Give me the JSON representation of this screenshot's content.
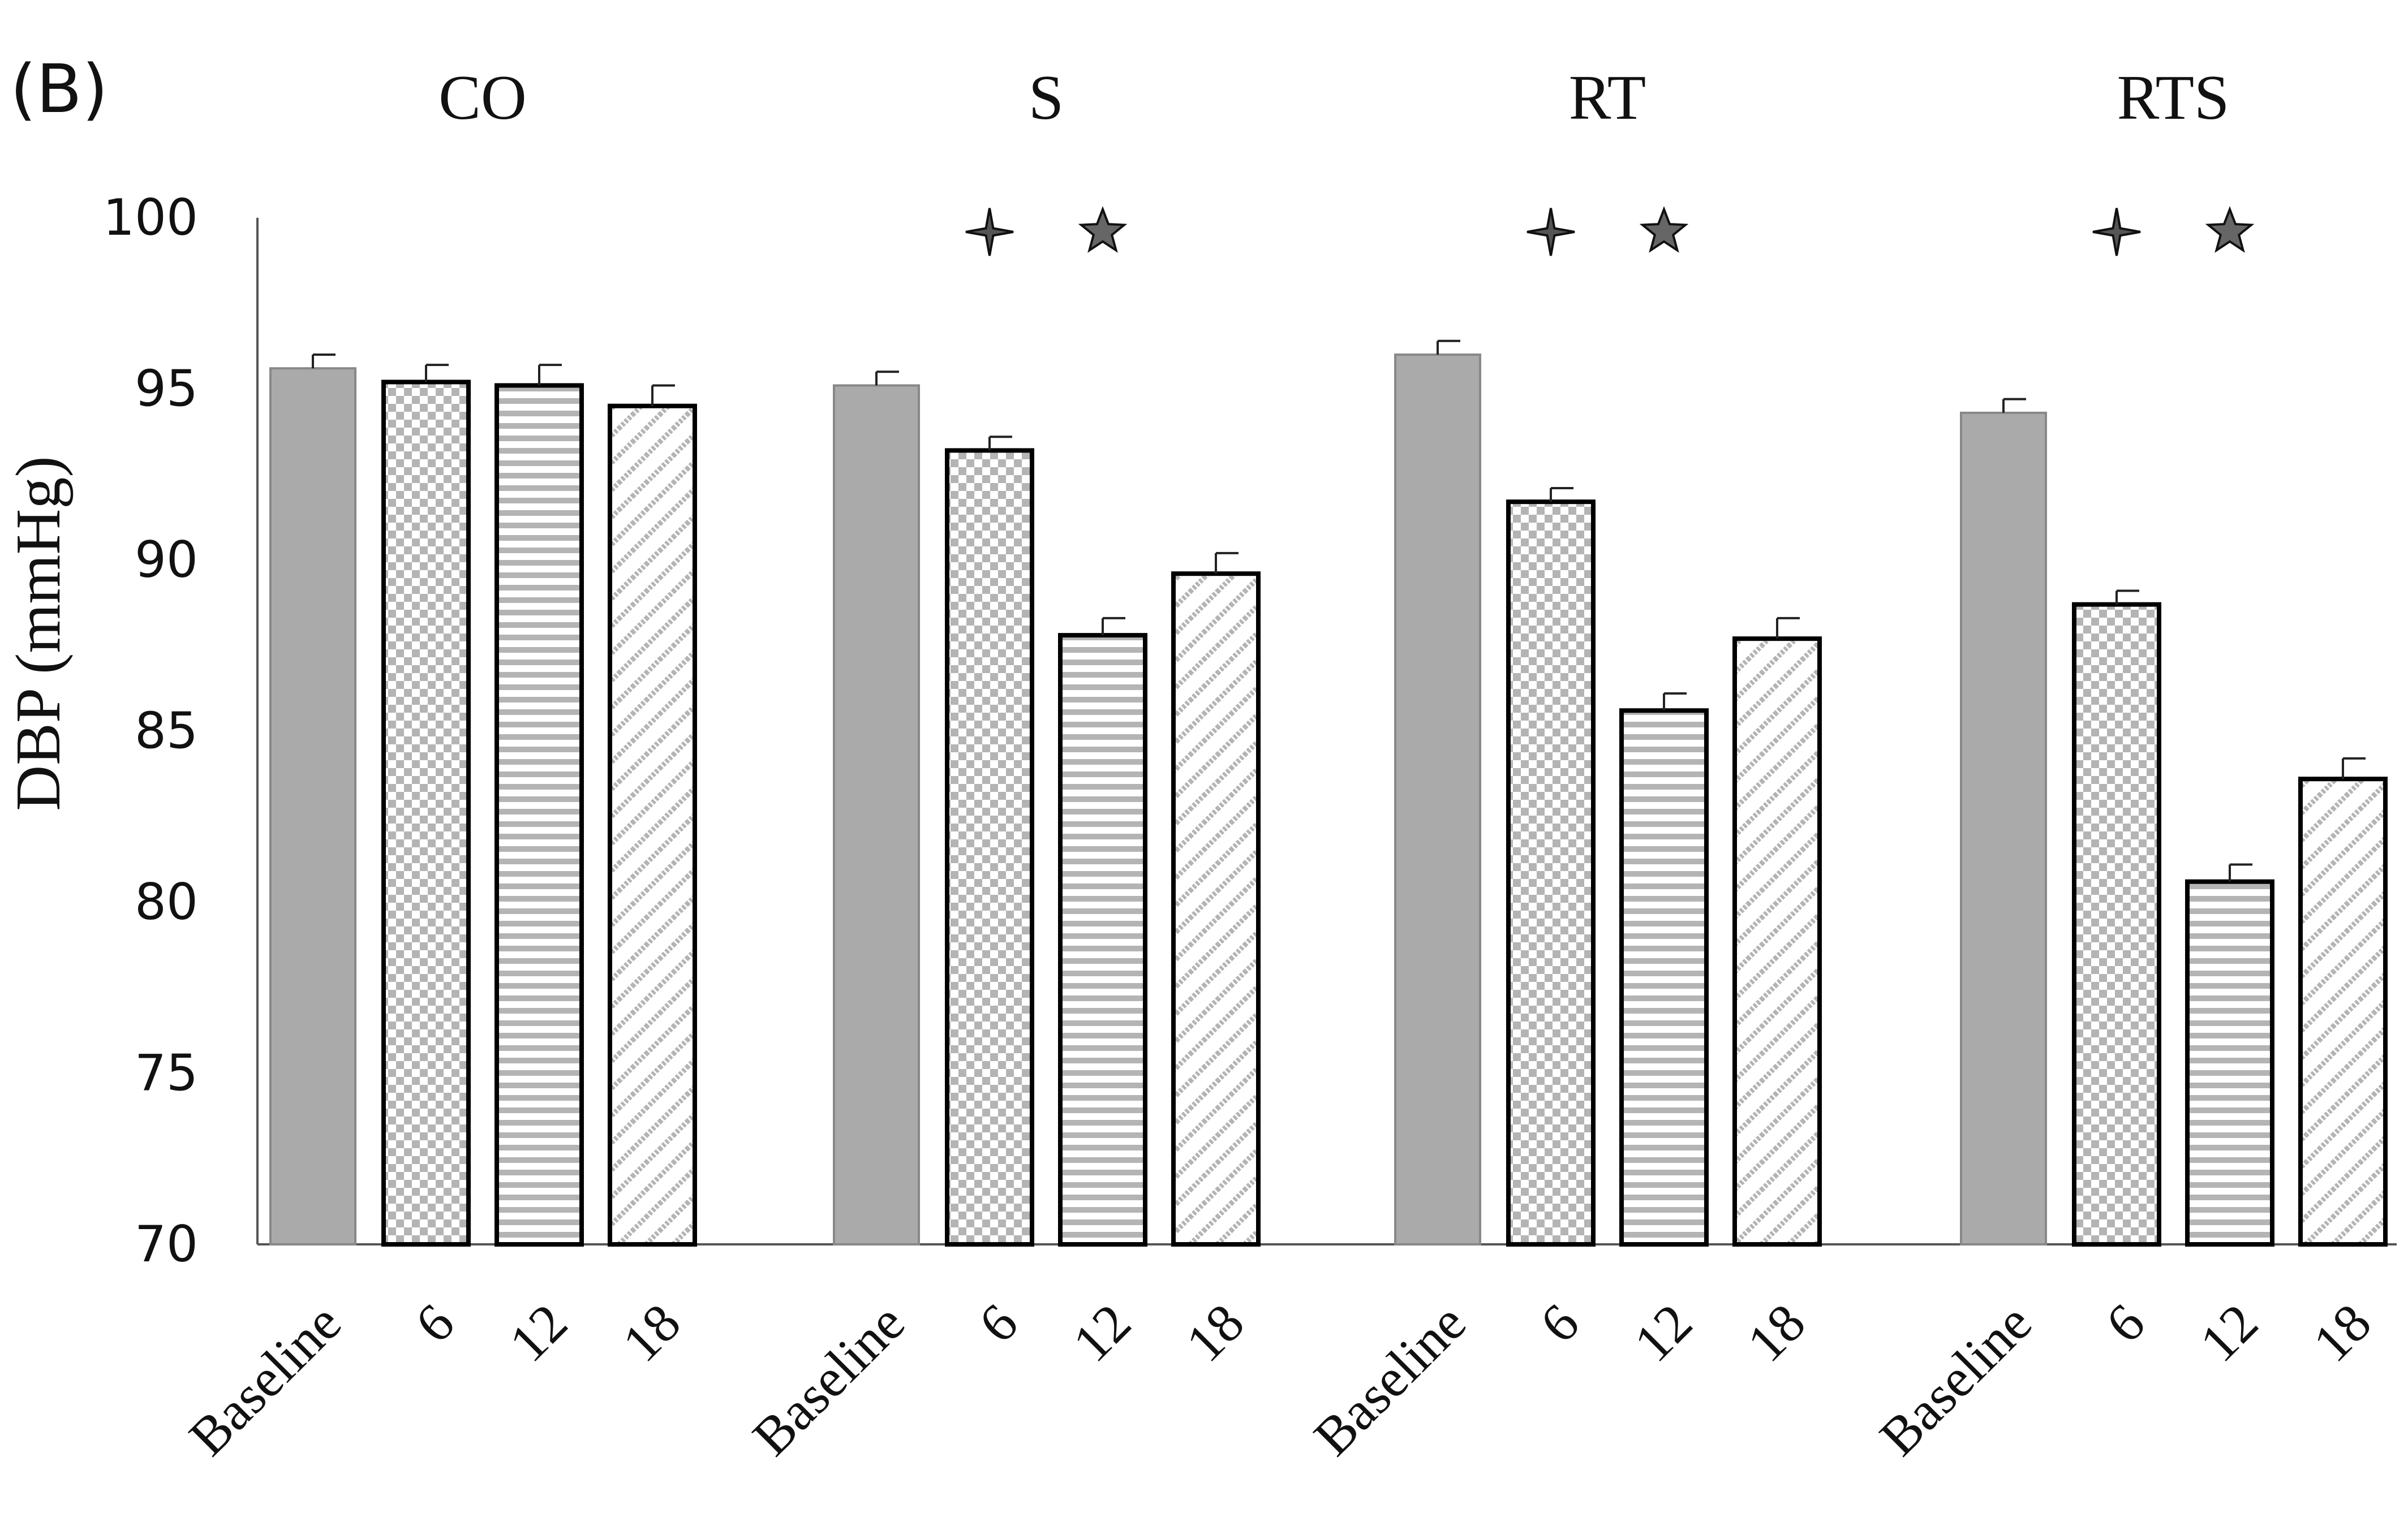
{
  "panel_label": "(B)",
  "chart_data": {
    "type": "bar",
    "ylabel": "DBP (mmHg)",
    "ylim": [
      70,
      100
    ],
    "yticks": [
      70,
      75,
      80,
      85,
      90,
      95,
      100
    ],
    "grid": false,
    "categories": [
      "Baseline",
      "6",
      "12",
      "18"
    ],
    "groups": [
      {
        "name": "CO",
        "values": [
          95.6,
          95.2,
          95.1,
          94.5
        ],
        "errors": [
          0.4,
          0.5,
          0.6,
          0.6
        ],
        "markers": []
      },
      {
        "name": "S",
        "values": [
          95.1,
          93.2,
          87.8,
          89.6
        ],
        "errors": [
          0.4,
          0.4,
          0.5,
          0.6
        ],
        "markers": [
          "cross-star",
          "star"
        ]
      },
      {
        "name": "RT",
        "values": [
          96.0,
          91.7,
          85.6,
          87.7
        ],
        "errors": [
          0.4,
          0.4,
          0.5,
          0.6
        ],
        "markers": [
          "cross-star",
          "star"
        ]
      },
      {
        "name": "RTS",
        "values": [
          94.3,
          88.7,
          80.6,
          83.6
        ],
        "errors": [
          0.4,
          0.4,
          0.5,
          0.6
        ],
        "markers": [
          "cross-star",
          "star"
        ]
      }
    ],
    "patterns": [
      "solid-gray",
      "checkerboard",
      "horizontal-stripes",
      "diagonal-dots"
    ],
    "colors": {
      "solid": "#aaaaaa",
      "pattern": "#b4b4b4",
      "outline": "#000000",
      "marker_fill": "#666666"
    }
  }
}
